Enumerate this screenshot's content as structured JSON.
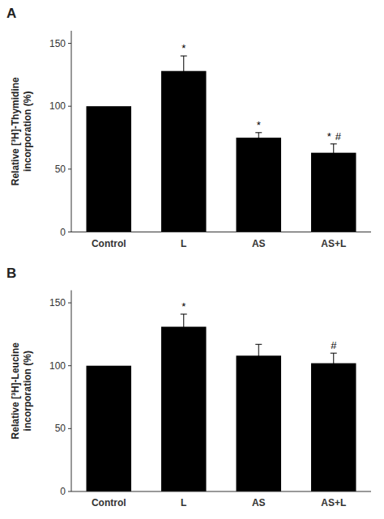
{
  "chart_data": [
    {
      "type": "bar",
      "title": "A",
      "categories": [
        "Control",
        "L",
        "AS",
        "AS+L"
      ],
      "values": [
        100,
        128,
        75,
        63
      ],
      "errors": [
        0,
        12,
        4,
        7
      ],
      "annotations": [
        null,
        [
          "*"
        ],
        [
          "*"
        ],
        [
          "*",
          "#"
        ]
      ],
      "ylabel": "Relative [³H]-Thymidine\nincorporation (%)",
      "ylim": [
        0,
        160
      ],
      "yticks": [
        0,
        50,
        100,
        150
      ],
      "color": "#000000",
      "grid": false
    },
    {
      "type": "bar",
      "title": "B",
      "categories": [
        "Control",
        "L",
        "AS",
        "AS+L"
      ],
      "values": [
        100,
        131,
        108,
        102
      ],
      "errors": [
        0,
        10,
        9,
        8
      ],
      "annotations": [
        null,
        [
          "*"
        ],
        null,
        [
          "#"
        ]
      ],
      "ylabel": "Relative [³H]-Leucine\nincorporation (%)",
      "ylim": [
        0,
        160
      ],
      "yticks": [
        0,
        50,
        100,
        150
      ],
      "color": "#000000",
      "grid": false
    }
  ]
}
